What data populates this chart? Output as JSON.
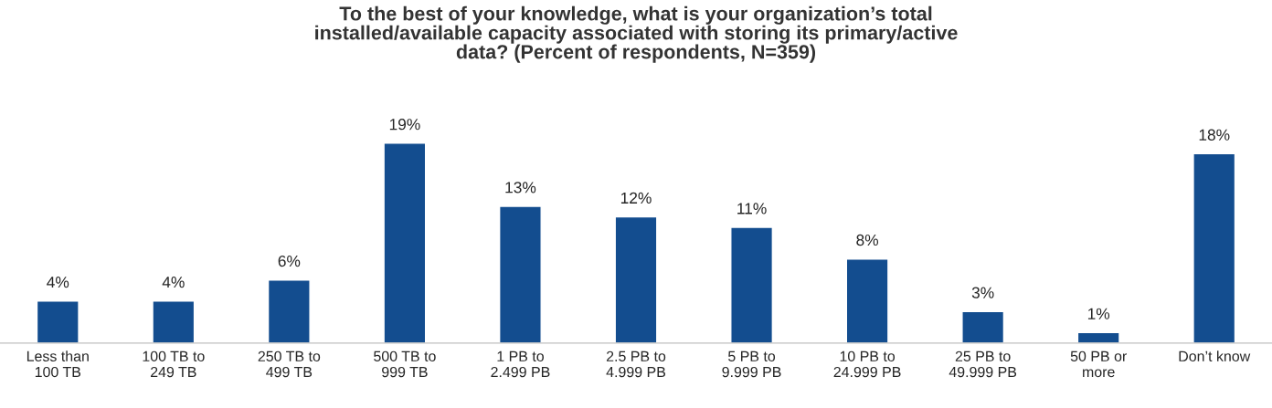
{
  "chart_data": {
    "type": "bar",
    "title": "To the best of your knowledge, what is your organization’s total\ninstalled/available capacity associated with storing its primary/active\ndata? (Percent of respondents, N=359)",
    "categories": [
      "Less than\n100 TB",
      "100 TB to\n249 TB",
      "250 TB to\n499 TB",
      "500 TB to\n999 TB",
      "1 PB to\n2.499 PB",
      "2.5 PB to\n4.999 PB",
      "5 PB to\n9.999 PB",
      "10 PB to\n24.999 PB",
      "25 PB to\n49.999 PB",
      "50 PB or\nmore",
      "Don’t know"
    ],
    "values": [
      4,
      4,
      6,
      19,
      13,
      12,
      11,
      8,
      3,
      1,
      18
    ],
    "value_labels": [
      "4%",
      "4%",
      "6%",
      "19%",
      "13%",
      "12%",
      "11%",
      "8%",
      "3%",
      "1%",
      "18%"
    ],
    "color": "#134d8f",
    "tick_labels": "x",
    "grid": false,
    "legend": false
  }
}
